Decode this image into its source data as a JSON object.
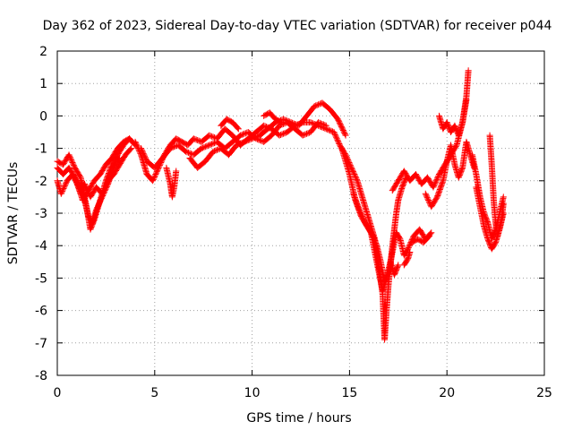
{
  "chart_data": {
    "type": "scatter",
    "title": "Day 362 of 2023, Sidereal Day-to-day VTEC variation (SDTVAR) for receiver p044",
    "xlabel": "GPS time / hours",
    "ylabel": "SDTVAR / TECUs",
    "xlim": [
      0,
      25
    ],
    "ylim": [
      -8,
      2
    ],
    "xticks": [
      "0",
      "5",
      "10",
      "15",
      "20",
      "25"
    ],
    "yticks": [
      "-8",
      "-7",
      "-6",
      "-5",
      "-4",
      "-3",
      "-2",
      "-1",
      "0",
      "1",
      "2"
    ],
    "grid": true,
    "marker": "+",
    "series": [
      {
        "name": "SDTVAR",
        "color": "#ff0000",
        "segments": [
          [
            [
              0.0,
              -1.4
            ],
            [
              0.3,
              -1.5
            ],
            [
              0.6,
              -1.2
            ],
            [
              0.9,
              -1.6
            ],
            [
              1.2,
              -1.9
            ],
            [
              1.5,
              -2.8
            ],
            [
              1.7,
              -3.5
            ],
            [
              1.9,
              -3.2
            ],
            [
              2.2,
              -2.6
            ],
            [
              2.5,
              -2.0
            ],
            [
              2.8,
              -1.5
            ],
            [
              3.1,
              -1.2
            ],
            [
              3.4,
              -0.9
            ],
            [
              3.7,
              -0.7
            ],
            [
              4.0,
              -0.9
            ]
          ],
          [
            [
              0.0,
              -2.0
            ],
            [
              0.2,
              -2.4
            ],
            [
              0.5,
              -2.0
            ],
            [
              0.8,
              -1.8
            ],
            [
              1.1,
              -2.2
            ],
            [
              1.3,
              -2.6
            ],
            [
              1.6,
              -2.3
            ],
            [
              1.9,
              -2.0
            ],
            [
              2.2,
              -1.8
            ],
            [
              2.5,
              -1.5
            ],
            [
              2.8,
              -1.3
            ],
            [
              3.1,
              -1.0
            ],
            [
              3.4,
              -0.8
            ],
            [
              3.7,
              -0.7
            ]
          ],
          [
            [
              0.0,
              -1.6
            ],
            [
              0.3,
              -1.8
            ],
            [
              0.6,
              -1.6
            ],
            [
              0.9,
              -1.9
            ],
            [
              1.2,
              -2.4
            ],
            [
              1.4,
              -2.1
            ],
            [
              1.7,
              -2.5
            ],
            [
              2.0,
              -2.2
            ],
            [
              2.3,
              -2.4
            ],
            [
              2.6,
              -2.0
            ],
            [
              2.9,
              -1.8
            ],
            [
              3.2,
              -1.5
            ],
            [
              3.5,
              -1.2
            ],
            [
              3.8,
              -1.0
            ]
          ],
          [
            [
              1.2,
              -2.0
            ],
            [
              1.4,
              -2.6
            ],
            [
              1.6,
              -3.1
            ],
            [
              1.8,
              -3.3
            ],
            [
              2.0,
              -2.9
            ],
            [
              2.3,
              -2.5
            ],
            [
              2.6,
              -2.1
            ],
            [
              2.9,
              -1.6
            ],
            [
              3.2,
              -1.3
            ]
          ],
          [
            [
              4.0,
              -0.8
            ],
            [
              4.3,
              -1.2
            ],
            [
              4.6,
              -1.8
            ],
            [
              4.9,
              -2.0
            ],
            [
              5.2,
              -1.6
            ],
            [
              5.5,
              -1.2
            ],
            [
              5.8,
              -0.9
            ],
            [
              6.1,
              -0.7
            ],
            [
              6.4,
              -0.8
            ],
            [
              6.7,
              -0.9
            ],
            [
              7.0,
              -0.7
            ],
            [
              7.4,
              -0.8
            ],
            [
              7.8,
              -0.6
            ],
            [
              8.2,
              -0.7
            ],
            [
              8.6,
              -0.4
            ],
            [
              9.0,
              -0.6
            ],
            [
              9.4,
              -0.9
            ],
            [
              9.8,
              -0.7
            ],
            [
              10.2,
              -0.5
            ],
            [
              10.6,
              -0.3
            ],
            [
              11.0,
              -0.4
            ],
            [
              11.4,
              -0.6
            ],
            [
              11.8,
              -0.5
            ],
            [
              12.2,
              -0.3
            ],
            [
              12.6,
              -0.2
            ],
            [
              13.0,
              -0.2
            ],
            [
              13.4,
              -0.3
            ],
            [
              13.8,
              -0.4
            ],
            [
              14.2,
              -0.5
            ]
          ],
          [
            [
              4.3,
              -1.0
            ],
            [
              4.6,
              -1.4
            ],
            [
              5.0,
              -1.6
            ],
            [
              5.4,
              -1.3
            ],
            [
              5.8,
              -1.0
            ],
            [
              6.2,
              -0.9
            ],
            [
              6.6,
              -1.1
            ],
            [
              7.0,
              -1.2
            ],
            [
              7.4,
              -1.0
            ],
            [
              7.8,
              -0.9
            ],
            [
              8.2,
              -0.8
            ],
            [
              8.6,
              -1.0
            ],
            [
              9.0,
              -0.8
            ],
            [
              9.4,
              -0.6
            ],
            [
              9.8,
              -0.5
            ],
            [
              10.2,
              -0.7
            ],
            [
              10.6,
              -0.8
            ],
            [
              11.0,
              -0.6
            ],
            [
              11.4,
              -0.3
            ],
            [
              11.8,
              -0.2
            ],
            [
              12.2,
              -0.4
            ],
            [
              12.6,
              -0.6
            ],
            [
              13.0,
              -0.5
            ],
            [
              13.4,
              -0.2
            ],
            [
              13.8,
              -0.3
            ]
          ],
          [
            [
              5.6,
              -1.6
            ],
            [
              5.8,
              -2.1
            ],
            [
              5.9,
              -2.5
            ],
            [
              6.0,
              -2.2
            ],
            [
              6.1,
              -1.7
            ]
          ],
          [
            [
              6.8,
              -1.3
            ],
            [
              7.2,
              -1.6
            ],
            [
              7.6,
              -1.4
            ],
            [
              8.0,
              -1.1
            ],
            [
              8.4,
              -1.0
            ],
            [
              8.8,
              -1.2
            ],
            [
              9.2,
              -0.9
            ],
            [
              9.6,
              -0.8
            ],
            [
              10.0,
              -0.7
            ],
            [
              10.4,
              -0.6
            ],
            [
              10.8,
              -0.4
            ],
            [
              11.2,
              -0.2
            ],
            [
              11.6,
              -0.1
            ],
            [
              12.0,
              -0.2
            ],
            [
              12.4,
              -0.3
            ],
            [
              12.8,
              0.0
            ],
            [
              13.2,
              0.3
            ],
            [
              13.6,
              0.4
            ],
            [
              14.0,
              0.2
            ],
            [
              14.4,
              -0.1
            ],
            [
              14.8,
              -0.6
            ]
          ],
          [
            [
              8.4,
              -0.3
            ],
            [
              8.7,
              -0.1
            ],
            [
              9.0,
              -0.2
            ],
            [
              9.3,
              -0.4
            ]
          ],
          [
            [
              10.6,
              0.0
            ],
            [
              10.9,
              0.1
            ],
            [
              11.2,
              -0.1
            ],
            [
              11.5,
              -0.2
            ]
          ],
          [
            [
              14.2,
              -0.5
            ],
            [
              14.5,
              -0.9
            ],
            [
              14.8,
              -1.2
            ],
            [
              15.1,
              -1.6
            ],
            [
              15.4,
              -2.0
            ],
            [
              15.7,
              -2.6
            ],
            [
              16.0,
              -3.2
            ],
            [
              16.3,
              -3.8
            ],
            [
              16.5,
              -4.6
            ],
            [
              16.7,
              -5.5
            ],
            [
              16.8,
              -6.9
            ],
            [
              16.9,
              -6.0
            ],
            [
              17.0,
              -5.2
            ],
            [
              17.1,
              -4.6
            ],
            [
              17.2,
              -4.0
            ],
            [
              17.3,
              -3.5
            ],
            [
              17.4,
              -3.0
            ],
            [
              17.5,
              -2.6
            ],
            [
              17.7,
              -2.2
            ],
            [
              17.9,
              -1.9
            ]
          ],
          [
            [
              14.6,
              -1.0
            ],
            [
              15.0,
              -1.8
            ],
            [
              15.3,
              -2.6
            ],
            [
              15.6,
              -3.1
            ],
            [
              15.9,
              -3.4
            ],
            [
              16.2,
              -3.7
            ],
            [
              16.4,
              -4.0
            ],
            [
              16.6,
              -4.5
            ],
            [
              16.8,
              -5.1
            ],
            [
              17.0,
              -4.8
            ],
            [
              17.2,
              -4.2
            ],
            [
              17.4,
              -3.6
            ],
            [
              17.6,
              -3.8
            ],
            [
              17.8,
              -4.3
            ],
            [
              18.0,
              -4.1
            ],
            [
              18.3,
              -3.7
            ],
            [
              18.6,
              -3.5
            ],
            [
              18.9,
              -3.8
            ],
            [
              19.2,
              -3.6
            ]
          ],
          [
            [
              15.2,
              -2.4
            ],
            [
              15.5,
              -2.9
            ],
            [
              15.8,
              -3.3
            ],
            [
              16.1,
              -3.6
            ],
            [
              16.3,
              -4.2
            ],
            [
              16.5,
              -4.8
            ],
            [
              16.7,
              -5.4
            ],
            [
              16.9,
              -5.0
            ],
            [
              17.1,
              -4.5
            ],
            [
              17.3,
              -4.9
            ],
            [
              17.5,
              -4.6
            ]
          ],
          [
            [
              17.2,
              -2.3
            ],
            [
              17.5,
              -2.0
            ],
            [
              17.8,
              -1.7
            ],
            [
              18.1,
              -2.0
            ],
            [
              18.4,
              -1.8
            ],
            [
              18.7,
              -2.1
            ],
            [
              19.0,
              -1.9
            ],
            [
              19.3,
              -2.2
            ],
            [
              19.6,
              -1.8
            ],
            [
              19.9,
              -1.5
            ],
            [
              20.2,
              -1.2
            ],
            [
              20.5,
              -0.9
            ],
            [
              20.8,
              -0.2
            ],
            [
              21.0,
              0.6
            ],
            [
              21.1,
              1.4
            ]
          ],
          [
            [
              18.9,
              -2.4
            ],
            [
              19.2,
              -2.8
            ],
            [
              19.5,
              -2.5
            ],
            [
              19.8,
              -2.0
            ],
            [
              20.0,
              -1.4
            ],
            [
              20.2,
              -0.9
            ],
            [
              20.4,
              -1.5
            ],
            [
              20.6,
              -1.9
            ],
            [
              20.8,
              -1.6
            ],
            [
              21.0,
              -0.8
            ],
            [
              21.2,
              -1.2
            ],
            [
              21.4,
              -1.6
            ]
          ],
          [
            [
              19.6,
              0.0
            ],
            [
              19.8,
              -0.4
            ],
            [
              20.0,
              -0.2
            ],
            [
              20.2,
              -0.5
            ],
            [
              20.4,
              -0.3
            ],
            [
              20.6,
              -0.6
            ],
            [
              20.8,
              -0.2
            ],
            [
              21.0,
              0.5
            ]
          ],
          [
            [
              18.2,
              -3.9
            ],
            [
              18.5,
              -3.8
            ],
            [
              18.8,
              -3.9
            ],
            [
              19.1,
              -3.7
            ]
          ],
          [
            [
              17.8,
              -4.6
            ],
            [
              18.0,
              -4.4
            ],
            [
              18.1,
              -4.2
            ]
          ],
          [
            [
              21.3,
              -1.2
            ],
            [
              21.5,
              -1.8
            ],
            [
              21.7,
              -2.5
            ],
            [
              21.9,
              -3.0
            ],
            [
              22.1,
              -3.3
            ],
            [
              22.3,
              -3.8
            ],
            [
              22.5,
              -3.5
            ],
            [
              22.7,
              -3.0
            ],
            [
              22.9,
              -2.5
            ]
          ],
          [
            [
              21.5,
              -2.2
            ],
            [
              21.7,
              -2.8
            ],
            [
              21.9,
              -3.4
            ],
            [
              22.1,
              -3.8
            ],
            [
              22.3,
              -4.1
            ],
            [
              22.5,
              -3.9
            ],
            [
              22.7,
              -3.5
            ],
            [
              22.9,
              -3.0
            ]
          ],
          [
            [
              22.2,
              -0.6
            ],
            [
              22.3,
              -1.5
            ],
            [
              22.4,
              -2.6
            ],
            [
              22.5,
              -3.3
            ],
            [
              22.6,
              -3.7
            ],
            [
              22.8,
              -3.2
            ],
            [
              22.9,
              -2.7
            ]
          ]
        ]
      }
    ]
  }
}
